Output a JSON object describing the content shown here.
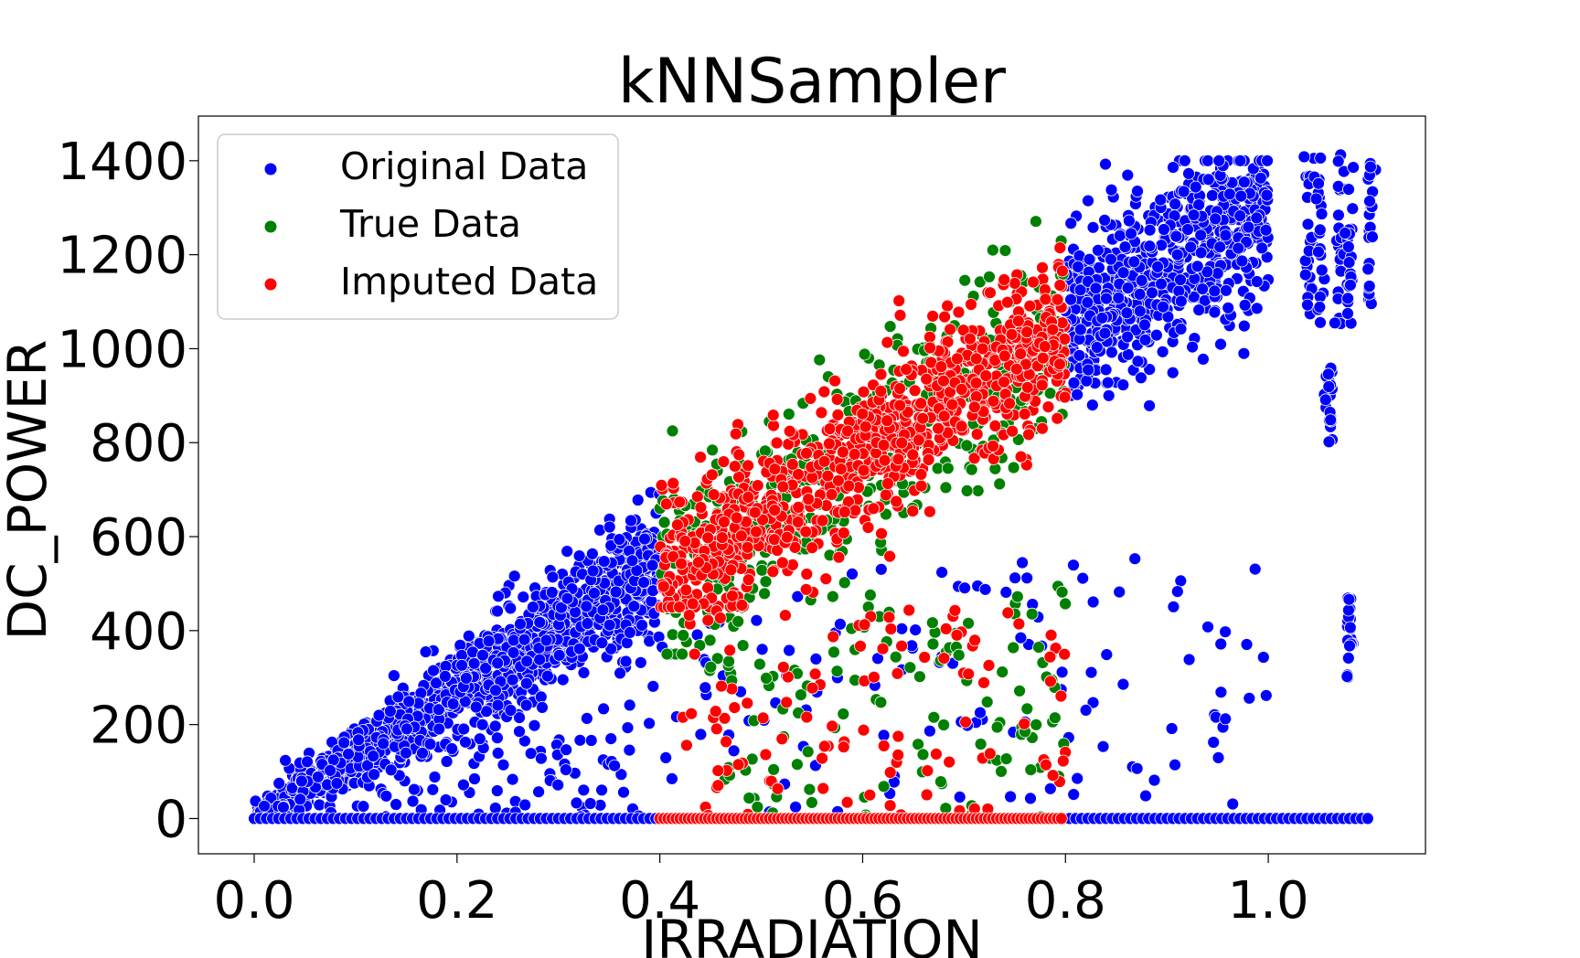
{
  "chart_data": {
    "type": "scatter",
    "title": "kNNSampler",
    "xlabel": "IRRADIATION",
    "ylabel": "DC_POWER",
    "xlim": [
      -0.055,
      1.155
    ],
    "ylim": [
      -75,
      1495
    ],
    "xticks": [
      0.0,
      0.2,
      0.4,
      0.6,
      0.8,
      1.0
    ],
    "xtick_labels": [
      "0.0",
      "0.2",
      "0.4",
      "0.6",
      "0.8",
      "1.0"
    ],
    "yticks": [
      0,
      200,
      400,
      600,
      800,
      1000,
      1200,
      1400
    ],
    "ytick_labels": [
      "0",
      "200",
      "400",
      "600",
      "800",
      "1000",
      "1200",
      "1400"
    ],
    "grid": false,
    "legend_position": "top-left",
    "series": [
      {
        "name": "Original Data",
        "color": "#0000ff",
        "x_range": [
          0.0,
          1.1
        ],
        "note": "dense linear band y≈1300·x plus zero-output points and scattered outliers; gap in 0.4–0.8 region filled by imputation"
      },
      {
        "name": "True Data",
        "color": "#008000",
        "x_range": [
          0.4,
          0.8
        ],
        "note": "held-out true values in the 0.4–0.8 irradiation region"
      },
      {
        "name": "Imputed Data",
        "color": "#ff0000",
        "x_range": [
          0.4,
          0.8
        ],
        "note": "kNNSampler imputed values in the 0.4–0.8 irradiation region"
      }
    ],
    "legend": {
      "original": "Original Data",
      "true": "True Data",
      "imputed": "Imputed Data"
    }
  }
}
